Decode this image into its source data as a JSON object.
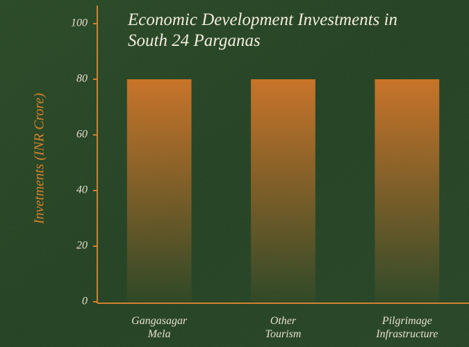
{
  "chart_data": {
    "type": "bar",
    "title": "Economic Development Investments in South 24 Parganas",
    "y_label": "Invetments (INR Crore)",
    "categories": [
      "Gangasagar Mela",
      "Other Tourism",
      "Pilgrimage Infrastructure"
    ],
    "values": [
      80,
      80,
      80
    ],
    "color": "#c8742a",
    "ylim": [
      0,
      100
    ],
    "yticks": [
      0,
      20,
      40,
      60,
      80,
      100
    ],
    "grid": false
  }
}
